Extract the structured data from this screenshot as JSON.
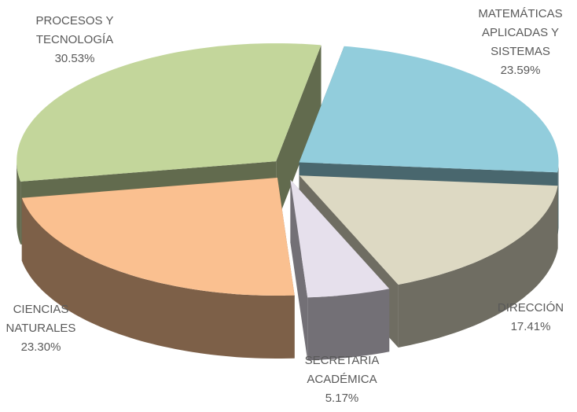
{
  "chart_data": {
    "type": "pie3d",
    "categories": [
      "MATEMÁTICAS APLICADAS Y SISTEMAS",
      "DIRECCIÓN",
      "SECRETARIA ACADÉMICA",
      "CIENCIAS NATURALES",
      "PROCESOS Y TECNOLOGÍA"
    ],
    "values": [
      23.59,
      17.41,
      5.17,
      23.3,
      30.53
    ],
    "value_labels": [
      "23.59%",
      "17.41%",
      "5.17%",
      "23.30%",
      "30.53%"
    ],
    "colors": [
      "#92cddc",
      "#ddd9c3",
      "#e6e0ec",
      "#fac090",
      "#c3d69b"
    ]
  }
}
